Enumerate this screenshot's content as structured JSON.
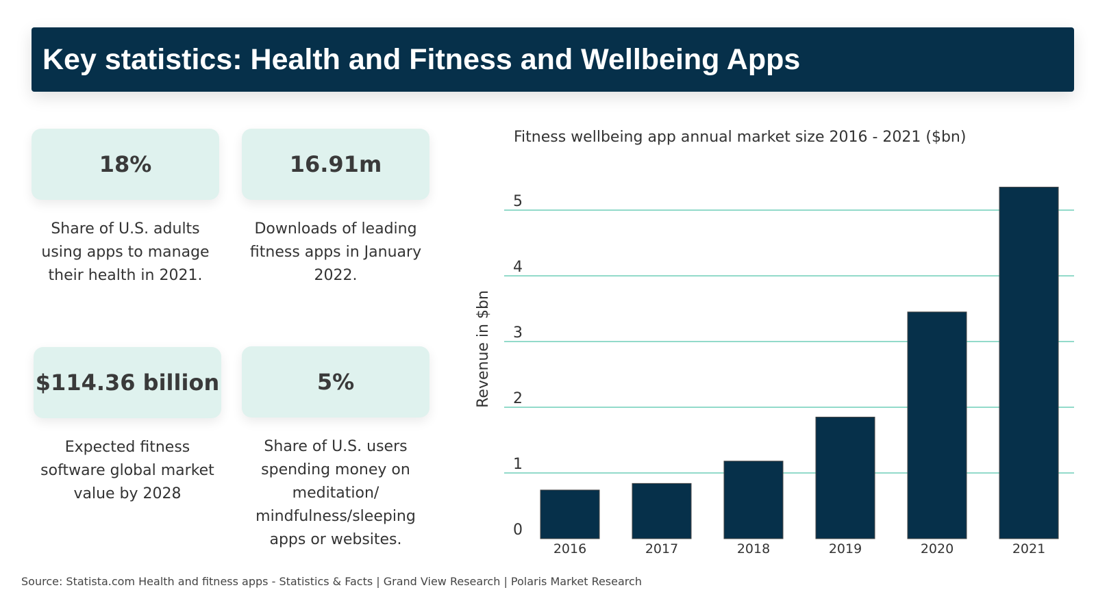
{
  "header": {
    "title": "Key statistics: Health and Fitness and Wellbeing Apps"
  },
  "stats": [
    {
      "value": "18%",
      "description": "Share of U.S. adults using apps to manage their health in 2021."
    },
    {
      "value": "16.91m",
      "description": "Downloads of leading fitness apps in January 2022."
    },
    {
      "value": "$114.36 billion",
      "description": "Expected fitness software global market value by 2028"
    },
    {
      "value": "5%",
      "description": "Share of U.S. users spending money on meditation/ mindfulness/sleeping apps or websites."
    }
  ],
  "chart_data": {
    "type": "bar",
    "title": "Fitness wellbeing app annual market size 2016 - 2021 ($bn)",
    "xlabel": "",
    "ylabel": "Revenue in $bn",
    "categories": [
      "2016",
      "2017",
      "2018",
      "2019",
      "2020",
      "2021"
    ],
    "values": [
      0.74,
      0.84,
      1.18,
      1.85,
      3.45,
      5.35
    ],
    "yticks": [
      "0",
      "1",
      "2",
      "3",
      "4",
      "5"
    ],
    "ylim": [
      0,
      5.4
    ],
    "grid": true,
    "bar_color": "#06304a",
    "grid_color": "#6fcdb9"
  },
  "footer": {
    "source": "Source:  Statista.com Health and fitness apps - Statistics & Facts | Grand View Research | Polaris Market Research"
  }
}
